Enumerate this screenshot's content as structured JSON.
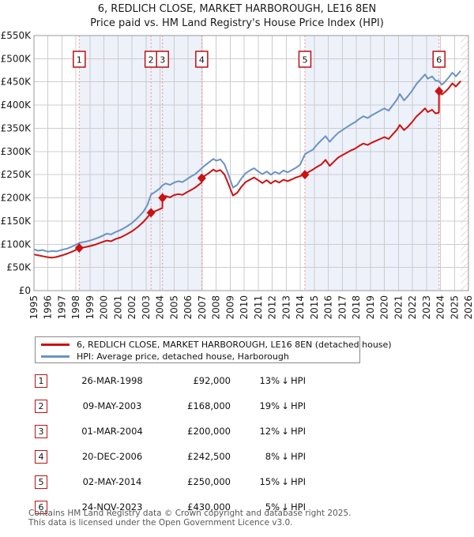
{
  "title": {
    "line1": "6, REDLICH CLOSE, MARKET HARBOROUGH, LE16 8EN",
    "line2": "Price paid vs. HM Land Registry's House Price Index (HPI)"
  },
  "legend": {
    "items": [
      {
        "label": "6, REDLICH CLOSE, MARKET HARBOROUGH, LE16 8EN (detached house)",
        "color": "#cc1111"
      },
      {
        "label": "HPI: Average price, detached house, Harborough",
        "color": "#6c92c4"
      }
    ]
  },
  "transactions": {
    "rows": [
      {
        "num": "1",
        "date": "26-MAR-1998",
        "price": "£92,000",
        "pct": "13%",
        "dir": "↓",
        "ref": "HPI"
      },
      {
        "num": "2",
        "date": "09-MAY-2003",
        "price": "£168,000",
        "pct": "19%",
        "dir": "↓",
        "ref": "HPI"
      },
      {
        "num": "3",
        "date": "01-MAR-2004",
        "price": "£200,000",
        "pct": "12%",
        "dir": "↓",
        "ref": "HPI"
      },
      {
        "num": "4",
        "date": "20-DEC-2006",
        "price": "£242,500",
        "pct": "8%",
        "dir": "↓",
        "ref": "HPI"
      },
      {
        "num": "5",
        "date": "02-MAY-2014",
        "price": "£250,000",
        "pct": "15%",
        "dir": "↓",
        "ref": "HPI"
      },
      {
        "num": "6",
        "date": "24-NOV-2023",
        "price": "£430,000",
        "pct": "5%",
        "dir": "↓",
        "ref": "HPI"
      }
    ]
  },
  "footer": {
    "line1": "Contains HM Land Registry data © Crown copyright and database right 2025.",
    "line2": "This data is licensed under the Open Government Licence v3.0."
  },
  "chart_data": {
    "type": "line",
    "x_range": [
      1995,
      2026
    ],
    "y_range": [
      0,
      550000
    ],
    "y_tick_step": 50000,
    "y_tick_labels": [
      "£0",
      "£50K",
      "£100K",
      "£150K",
      "£200K",
      "£250K",
      "£300K",
      "£350K",
      "£400K",
      "£450K",
      "£500K",
      "£550K"
    ],
    "x_ticks": [
      1995,
      1996,
      1997,
      1998,
      1999,
      2000,
      2001,
      2002,
      2003,
      2004,
      2005,
      2006,
      2007,
      2008,
      2009,
      2010,
      2011,
      2012,
      2013,
      2014,
      2015,
      2016,
      2017,
      2018,
      2019,
      2020,
      2021,
      2022,
      2023,
      2024,
      2025,
      2026
    ],
    "grid": true,
    "legend_position": "below",
    "colors": {
      "price_line": "#cc1111",
      "hpi_line": "#6c92c4",
      "band": "#edf1fa",
      "grid": "#cccccc",
      "border": "#999999",
      "sale_line": "#f09090",
      "marker_box_border": "#bb1111",
      "hatch": "#bbbbbb"
    },
    "bands": [
      [
        1998.23,
        2006.97
      ],
      [
        2014.33,
        2023.9
      ]
    ],
    "hatch_from": 2025.45,
    "sales": [
      {
        "n": "1",
        "year": 1998.23,
        "price": 92000
      },
      {
        "n": "2",
        "year": 2003.35,
        "price": 168000
      },
      {
        "n": "3",
        "year": 2004.17,
        "price": 200000
      },
      {
        "n": "4",
        "year": 2006.97,
        "price": 242500
      },
      {
        "n": "5",
        "year": 2014.33,
        "price": 250000
      },
      {
        "n": "6",
        "year": 2023.9,
        "price": 430000
      }
    ],
    "series": [
      {
        "name": "hpi-average-price",
        "color": "#6c92c4",
        "points": [
          [
            1995.0,
            89000
          ],
          [
            1995.3,
            86000
          ],
          [
            1995.6,
            87500
          ],
          [
            1996.0,
            84000
          ],
          [
            1996.3,
            85500
          ],
          [
            1996.6,
            84500
          ],
          [
            1997.0,
            88000
          ],
          [
            1997.4,
            91000
          ],
          [
            1997.8,
            96000
          ],
          [
            1998.0,
            99000
          ],
          [
            1998.25,
            103000
          ],
          [
            1998.6,
            105000
          ],
          [
            1999.0,
            108000
          ],
          [
            1999.4,
            112000
          ],
          [
            1999.8,
            117000
          ],
          [
            2000.2,
            123000
          ],
          [
            2000.5,
            121000
          ],
          [
            2000.8,
            126000
          ],
          [
            2001.2,
            131000
          ],
          [
            2001.6,
            138000
          ],
          [
            2002.0,
            146000
          ],
          [
            2002.4,
            157000
          ],
          [
            2002.8,
            170000
          ],
          [
            2003.1,
            185000
          ],
          [
            2003.35,
            207000
          ],
          [
            2003.7,
            214000
          ],
          [
            2004.0,
            221000
          ],
          [
            2004.17,
            227000
          ],
          [
            2004.4,
            231000
          ],
          [
            2004.7,
            228000
          ],
          [
            2005.0,
            233000
          ],
          [
            2005.3,
            236000
          ],
          [
            2005.6,
            234000
          ],
          [
            2005.9,
            240000
          ],
          [
            2006.2,
            246000
          ],
          [
            2006.5,
            251000
          ],
          [
            2006.97,
            264000
          ],
          [
            2007.2,
            270000
          ],
          [
            2007.5,
            277000
          ],
          [
            2007.8,
            284000
          ],
          [
            2008.0,
            280000
          ],
          [
            2008.3,
            283000
          ],
          [
            2008.6,
            272000
          ],
          [
            2008.9,
            248000
          ],
          [
            2009.2,
            222000
          ],
          [
            2009.5,
            228000
          ],
          [
            2009.8,
            242000
          ],
          [
            2010.1,
            253000
          ],
          [
            2010.4,
            259000
          ],
          [
            2010.7,
            264000
          ],
          [
            2011.0,
            257000
          ],
          [
            2011.3,
            251000
          ],
          [
            2011.6,
            257000
          ],
          [
            2011.9,
            250000
          ],
          [
            2012.2,
            256000
          ],
          [
            2012.5,
            252000
          ],
          [
            2012.8,
            259000
          ],
          [
            2013.1,
            255000
          ],
          [
            2013.4,
            260000
          ],
          [
            2013.7,
            265000
          ],
          [
            2014.0,
            272000
          ],
          [
            2014.33,
            294000
          ],
          [
            2014.6,
            299000
          ],
          [
            2014.9,
            304000
          ],
          [
            2015.2,
            315000
          ],
          [
            2015.5,
            324000
          ],
          [
            2015.8,
            333000
          ],
          [
            2016.1,
            321000
          ],
          [
            2016.4,
            331000
          ],
          [
            2016.7,
            340000
          ],
          [
            2017.0,
            346000
          ],
          [
            2017.3,
            352000
          ],
          [
            2017.6,
            358000
          ],
          [
            2017.9,
            363000
          ],
          [
            2018.2,
            370000
          ],
          [
            2018.5,
            376000
          ],
          [
            2018.8,
            372000
          ],
          [
            2019.1,
            378000
          ],
          [
            2019.4,
            383000
          ],
          [
            2019.7,
            388000
          ],
          [
            2020.0,
            393000
          ],
          [
            2020.3,
            388000
          ],
          [
            2020.6,
            400000
          ],
          [
            2020.9,
            412000
          ],
          [
            2021.1,
            424000
          ],
          [
            2021.4,
            410000
          ],
          [
            2021.7,
            420000
          ],
          [
            2022.0,
            432000
          ],
          [
            2022.3,
            446000
          ],
          [
            2022.6,
            456000
          ],
          [
            2022.9,
            466000
          ],
          [
            2023.1,
            457000
          ],
          [
            2023.4,
            462000
          ],
          [
            2023.65,
            453000
          ],
          [
            2023.9,
            452000
          ],
          [
            2024.1,
            444000
          ],
          [
            2024.35,
            451000
          ],
          [
            2024.6,
            460000
          ],
          [
            2024.85,
            470000
          ],
          [
            2025.1,
            462000
          ],
          [
            2025.45,
            474000
          ]
        ]
      },
      {
        "name": "price-paid-indexed",
        "color": "#cc1111",
        "points": [
          [
            1995.0,
            78000
          ],
          [
            1995.4,
            75500
          ],
          [
            1996.0,
            72000
          ],
          [
            1996.3,
            71000
          ],
          [
            1996.6,
            72500
          ],
          [
            1997.0,
            76000
          ],
          [
            1997.4,
            80000
          ],
          [
            1997.8,
            85000
          ],
          [
            1998.0,
            88000
          ],
          [
            1998.25,
            92000
          ],
          [
            1998.6,
            93500
          ],
          [
            1999.0,
            96000
          ],
          [
            1999.4,
            99500
          ],
          [
            1999.8,
            104000
          ],
          [
            2000.2,
            108000
          ],
          [
            2000.5,
            106500
          ],
          [
            2000.8,
            111000
          ],
          [
            2001.2,
            115000
          ],
          [
            2001.6,
            121000
          ],
          [
            2002.0,
            128000
          ],
          [
            2002.4,
            137000
          ],
          [
            2002.8,
            148000
          ],
          [
            2003.1,
            158000
          ],
          [
            2003.35,
            168000
          ],
          [
            2003.7,
            172000
          ],
          [
            2004.0,
            176000
          ],
          [
            2004.16,
            178000
          ],
          [
            2004.17,
            200000
          ],
          [
            2004.4,
            204000
          ],
          [
            2004.7,
            201000
          ],
          [
            2005.0,
            206000
          ],
          [
            2005.3,
            208000
          ],
          [
            2005.6,
            206500
          ],
          [
            2005.9,
            212000
          ],
          [
            2006.2,
            217000
          ],
          [
            2006.5,
            222000
          ],
          [
            2006.96,
            233000
          ],
          [
            2006.97,
            242500
          ],
          [
            2007.2,
            248000
          ],
          [
            2007.5,
            254000
          ],
          [
            2007.8,
            261000
          ],
          [
            2008.0,
            257000
          ],
          [
            2008.3,
            260000
          ],
          [
            2008.6,
            250000
          ],
          [
            2008.9,
            228000
          ],
          [
            2009.2,
            205000
          ],
          [
            2009.5,
            211000
          ],
          [
            2009.8,
            224000
          ],
          [
            2010.1,
            234000
          ],
          [
            2010.4,
            239000
          ],
          [
            2010.7,
            244000
          ],
          [
            2011.0,
            238000
          ],
          [
            2011.3,
            232000
          ],
          [
            2011.6,
            238000
          ],
          [
            2011.9,
            231000
          ],
          [
            2012.2,
            237000
          ],
          [
            2012.5,
            233000
          ],
          [
            2012.8,
            239000
          ],
          [
            2013.1,
            236000
          ],
          [
            2013.4,
            240000
          ],
          [
            2013.7,
            244000
          ],
          [
            2014.0,
            247000
          ],
          [
            2014.33,
            250000
          ],
          [
            2014.6,
            256000
          ],
          [
            2014.9,
            261000
          ],
          [
            2015.2,
            267000
          ],
          [
            2015.5,
            272000
          ],
          [
            2015.8,
            282000
          ],
          [
            2016.1,
            269000
          ],
          [
            2016.4,
            278000
          ],
          [
            2016.7,
            287000
          ],
          [
            2017.0,
            292000
          ],
          [
            2017.3,
            297000
          ],
          [
            2017.6,
            302000
          ],
          [
            2017.9,
            306000
          ],
          [
            2018.2,
            312000
          ],
          [
            2018.5,
            317000
          ],
          [
            2018.8,
            314000
          ],
          [
            2019.1,
            319000
          ],
          [
            2019.4,
            323000
          ],
          [
            2019.7,
            327000
          ],
          [
            2020.0,
            331000
          ],
          [
            2020.3,
            327000
          ],
          [
            2020.6,
            337000
          ],
          [
            2020.9,
            347000
          ],
          [
            2021.1,
            357000
          ],
          [
            2021.4,
            346000
          ],
          [
            2021.7,
            354000
          ],
          [
            2022.0,
            364000
          ],
          [
            2022.3,
            376000
          ],
          [
            2022.6,
            384000
          ],
          [
            2022.9,
            393000
          ],
          [
            2023.1,
            385000
          ],
          [
            2023.4,
            390000
          ],
          [
            2023.65,
            382000
          ],
          [
            2023.89,
            384000
          ],
          [
            2023.9,
            430000
          ],
          [
            2024.1,
            423000
          ],
          [
            2024.35,
            429000
          ],
          [
            2024.6,
            437000
          ],
          [
            2024.85,
            447000
          ],
          [
            2025.1,
            440000
          ],
          [
            2025.45,
            452000
          ]
        ]
      }
    ]
  }
}
